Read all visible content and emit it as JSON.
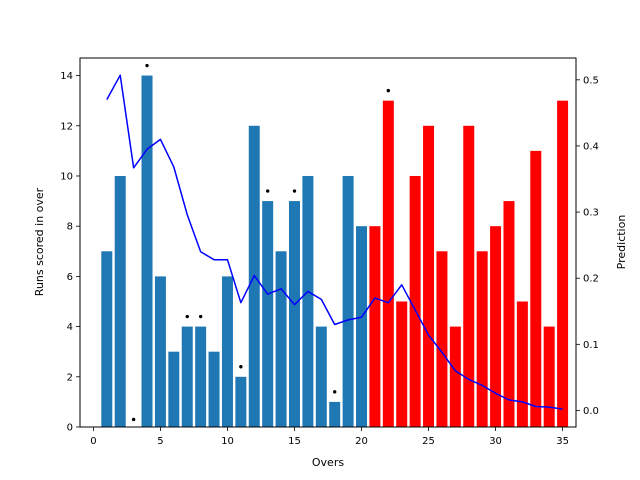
{
  "chart_data": {
    "type": "bar",
    "title": "",
    "xlabel": "Overs",
    "ylabel": "Runs scored in over",
    "y2label": "Prediction",
    "xlim": [
      -1,
      36
    ],
    "ylim": [
      0,
      14.7
    ],
    "y2lim": [
      -0.025,
      0.533
    ],
    "xticks": [
      0,
      5,
      10,
      15,
      20,
      25,
      30,
      35
    ],
    "yticks": [
      0,
      2,
      4,
      6,
      8,
      10,
      12,
      14
    ],
    "y2ticks": [
      "0.0",
      "0.1",
      "0.2",
      "0.3",
      "0.4",
      "0.5"
    ],
    "grid": false,
    "colors": {
      "first_innings": "#1f77b4",
      "second_innings": "#ff0000",
      "prediction": "#0000ff",
      "wicket": "#000000"
    },
    "series": [
      {
        "kind": "bar",
        "color": "#1f77b4",
        "x": [
          1,
          2,
          3,
          4,
          5,
          6,
          7,
          8,
          9,
          10,
          11,
          12,
          13,
          14,
          15,
          16,
          17,
          18,
          19,
          20
        ],
        "values": [
          7,
          10,
          0,
          14,
          6,
          3,
          4,
          4,
          3,
          6,
          2,
          12,
          9,
          7,
          9,
          10,
          4,
          1,
          10,
          8
        ]
      },
      {
        "kind": "bar",
        "color": "#ff0000",
        "x": [
          21,
          22,
          23,
          24,
          25,
          26,
          27,
          28,
          29,
          30,
          31,
          32,
          33,
          34,
          35
        ],
        "values": [
          8,
          13,
          5,
          10,
          12,
          7,
          4,
          12,
          7,
          8,
          9,
          5,
          11,
          4,
          13
        ]
      },
      {
        "kind": "line",
        "axis": "right",
        "color": "#0000ff",
        "x": [
          1,
          2,
          3,
          4,
          5,
          6,
          7,
          8,
          9,
          10,
          11,
          12,
          13,
          14,
          15,
          16,
          17,
          18,
          19,
          20,
          21,
          22,
          23,
          24,
          25,
          26,
          27,
          28,
          29,
          30,
          31,
          32,
          33,
          34,
          35
        ],
        "values": [
          0.47,
          0.507,
          0.367,
          0.395,
          0.41,
          0.368,
          0.296,
          0.24,
          0.228,
          0.228,
          0.163,
          0.204,
          0.176,
          0.184,
          0.16,
          0.18,
          0.168,
          0.13,
          0.137,
          0.141,
          0.17,
          0.163,
          0.19,
          0.152,
          0.114,
          0.088,
          0.06,
          0.047,
          0.038,
          0.026,
          0.016,
          0.013,
          0.006,
          0.005,
          0.002
        ]
      },
      {
        "kind": "scatter",
        "color": "#000000",
        "x": [
          3,
          4,
          7,
          8,
          11,
          13,
          15,
          18,
          22
        ],
        "values": [
          0.3,
          14.4,
          4.4,
          4.4,
          2.4,
          9.4,
          9.4,
          1.4,
          13.4
        ]
      }
    ]
  }
}
